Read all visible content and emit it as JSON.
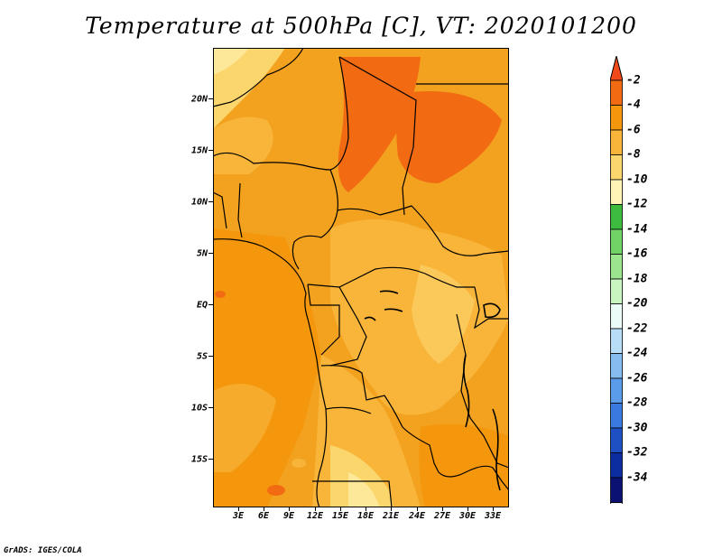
{
  "title": "Temperature at 500hPa [C], VT: 2020101200",
  "credit": "GrADS: IGES/COLA",
  "map": {
    "region": "Central Africa",
    "variable": "Temperature at 500hPa",
    "units": "C",
    "valid_time": "2020101200",
    "background_color": "#f3a21f"
  },
  "y_axis": {
    "labels": [
      "20N",
      "15N",
      "10N",
      "5N",
      "EQ",
      "5S",
      "10S",
      "15S"
    ]
  },
  "x_axis": {
    "labels": [
      "3E",
      "6E",
      "9E",
      "12E",
      "15E",
      "18E",
      "21E",
      "24E",
      "27E",
      "30E",
      "33E"
    ]
  },
  "colorbar": {
    "labels": [
      "-2",
      "-4",
      "-6",
      "-8",
      "-10",
      "-12",
      "-14",
      "-16",
      "-18",
      "-20",
      "-22",
      "-24",
      "-26",
      "-28",
      "-30",
      "-32",
      "-34"
    ],
    "colors": [
      "#f04a1a",
      "#f26b12",
      "#f5970c",
      "#f8b53a",
      "#fbd66d",
      "#fff3b5",
      "#3cbb3e",
      "#71d366",
      "#9be58d",
      "#c8f5c0",
      "#ebfbf8",
      "#b8ddf7",
      "#85bdf1",
      "#5a9bea",
      "#3a79e0",
      "#1e50c4",
      "#0c2da0",
      "#0a1173",
      "#e9e9ff"
    ]
  }
}
